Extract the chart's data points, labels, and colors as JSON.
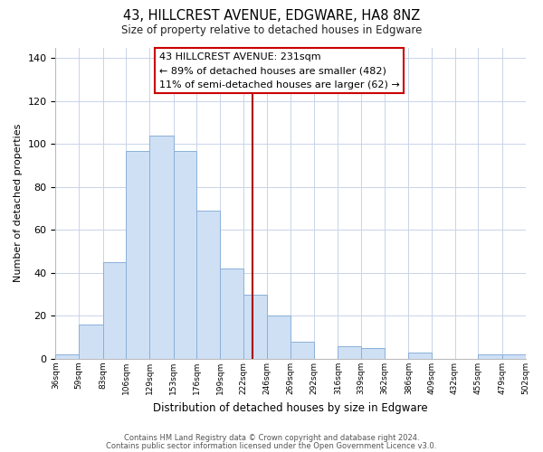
{
  "title": "43, HILLCREST AVENUE, EDGWARE, HA8 8NZ",
  "subtitle": "Size of property relative to detached houses in Edgware",
  "xlabel": "Distribution of detached houses by size in Edgware",
  "ylabel": "Number of detached properties",
  "bar_color": "#cfe0f5",
  "bar_edge_color": "#8ab0d8",
  "vline_x": 231,
  "vline_color": "#aa0000",
  "annotation_title": "43 HILLCREST AVENUE: 231sqm",
  "annotation_line1": "← 89% of detached houses are smaller (482)",
  "annotation_line2": "11% of semi-detached houses are larger (62) →",
  "annotation_box_color": "#ffffff",
  "annotation_box_edge_color": "#cc0000",
  "bin_edges": [
    36,
    59,
    83,
    106,
    129,
    153,
    176,
    199,
    222,
    246,
    269,
    292,
    316,
    339,
    362,
    386,
    409,
    432,
    455,
    479,
    502
  ],
  "bin_counts": [
    2,
    16,
    45,
    97,
    104,
    97,
    69,
    42,
    30,
    20,
    8,
    0,
    6,
    5,
    0,
    3,
    0,
    0,
    2,
    2
  ],
  "ylim": [
    0,
    145
  ],
  "yticks": [
    0,
    20,
    40,
    60,
    80,
    100,
    120,
    140
  ],
  "footer_line1": "Contains HM Land Registry data © Crown copyright and database right 2024.",
  "footer_line2": "Contains public sector information licensed under the Open Government Licence v3.0.",
  "background_color": "#ffffff",
  "grid_color": "#c8d4e8"
}
